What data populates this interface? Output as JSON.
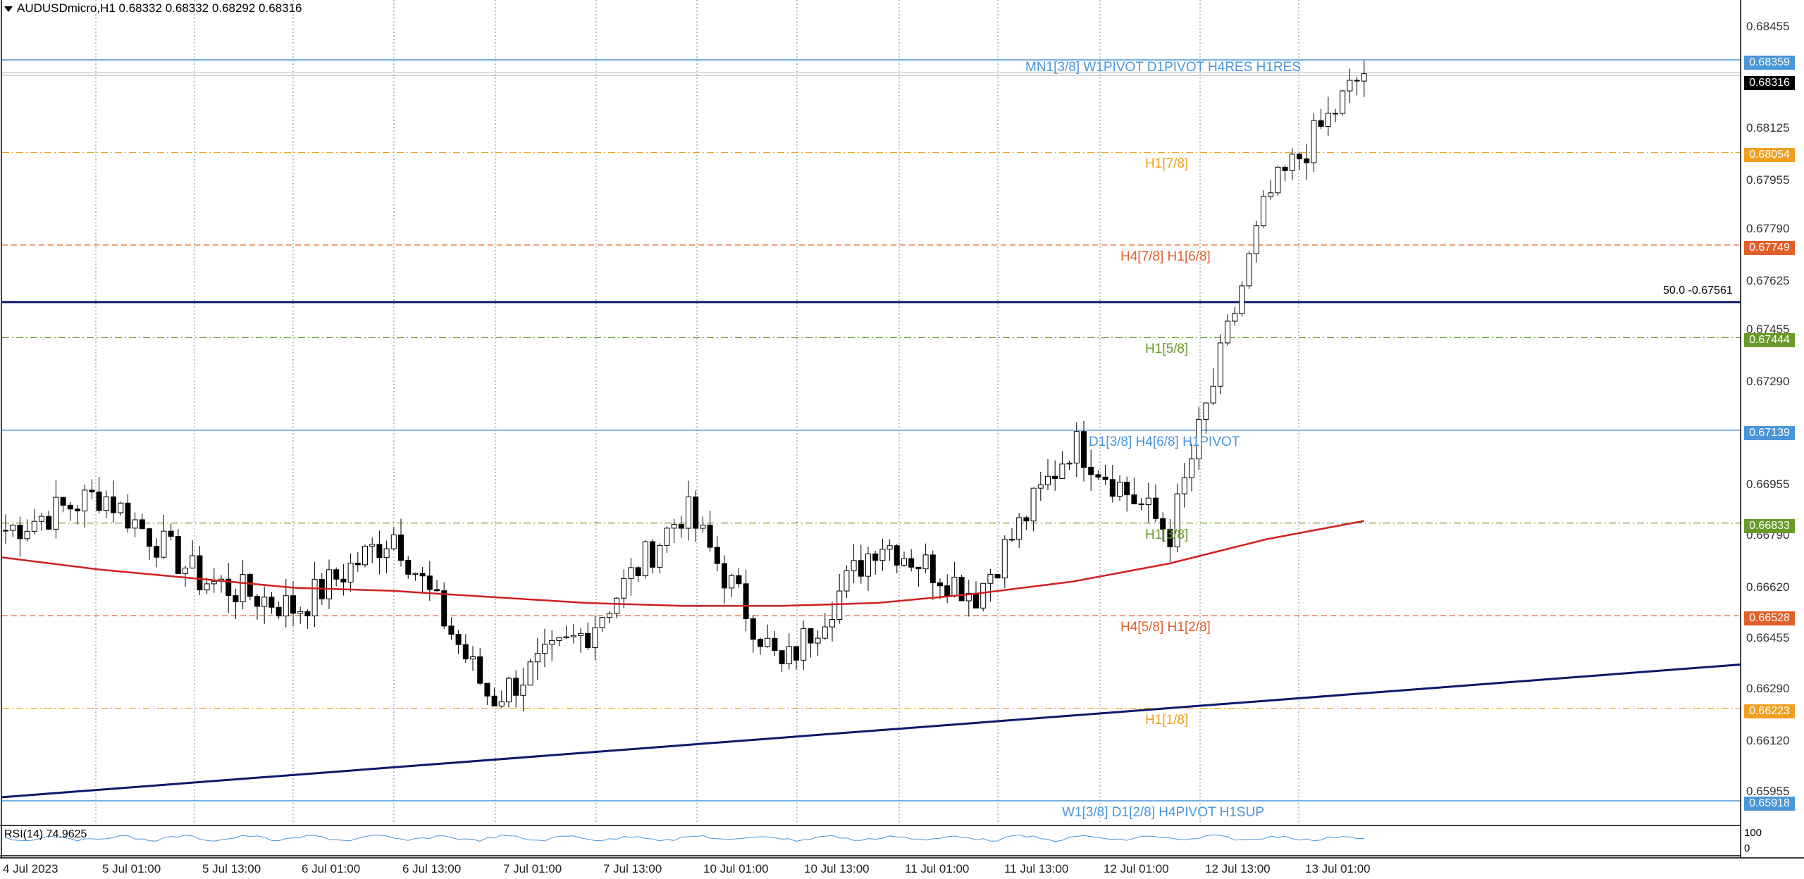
{
  "header": {
    "symbol_info": "AUDUSDmicro,H1  0.68332 0.68332 0.68292 0.68316"
  },
  "colors": {
    "blue": "#4a96d8",
    "orange": "#f0a020",
    "red_orange": "#e0602a",
    "green": "#6a9a2a",
    "navy": "#0a1a6a",
    "ma_red": "#d02020",
    "black": "#000000"
  },
  "price_axis": [
    "0.68455",
    "0.68125",
    "0.67955",
    "0.67790",
    "0.67625",
    "0.67455",
    "0.67290",
    "0.66955",
    "0.66790",
    "0.66620",
    "0.66455",
    "0.66290",
    "0.66120",
    "0.65955"
  ],
  "time_axis": [
    "4 Jul 2023",
    "5 Jul 01:00",
    "5 Jul 13:00",
    "6 Jul 01:00",
    "6 Jul 13:00",
    "7 Jul 01:00",
    "7 Jul 13:00",
    "10 Jul 01:00",
    "10 Jul 13:00",
    "11 Jul 01:00",
    "11 Jul 13:00",
    "12 Jul 01:00",
    "12 Jul 13:00",
    "13 Jul 01:00"
  ],
  "levels": [
    {
      "label": "MN1[3/8] W1PIVOT D1PIVOT H4RES H1RES",
      "price": 0.68359,
      "tag": "0.68359",
      "color": "#4a96d8",
      "style": "solid"
    },
    {
      "label": "H1[7/8]",
      "price": 0.68054,
      "tag": "0.68054",
      "color": "#f0a020",
      "style": "dashdot"
    },
    {
      "label": "H4[7/8] H1[6/8]",
      "price": 0.67749,
      "tag": "0.67749",
      "color": "#e0602a",
      "style": "dash"
    },
    {
      "label": "H1[5/8]",
      "price": 0.67444,
      "tag": "0.67444",
      "color": "#6a9a2a",
      "style": "dashdot"
    },
    {
      "label": "D1[3/8] H4[6/8] H1PIVOT",
      "price": 0.67139,
      "tag": "0.67139",
      "color": "#4a96d8",
      "style": "solid"
    },
    {
      "label": "H1[3/8]",
      "price": 0.66833,
      "tag": "0.66833",
      "color": "#6a9a2a",
      "style": "dashdot"
    },
    {
      "label": "H4[5/8] H1[2/8]",
      "price": 0.66528,
      "tag": "0.66528",
      "color": "#e0602a",
      "style": "dash"
    },
    {
      "label": "H1[1/8]",
      "price": 0.66223,
      "tag": "0.66223",
      "color": "#f0a020",
      "style": "dashdot"
    },
    {
      "label": "W1[3/8] D1[2/8] H4PIVOT H1SUP",
      "price": 0.65918,
      "tag": "0.65918",
      "color": "#4a96d8",
      "style": "solid"
    }
  ],
  "current_price": {
    "tag": "0.68316",
    "value": 0.68316
  },
  "fib_line": {
    "label": "50.0 -0.67561",
    "price": 0.67561
  },
  "rsi": {
    "label": "RSI(14) 74.9625",
    "scale_top": "100",
    "scale_bottom": "0",
    "value": 74.9625
  },
  "chart_data": {
    "type": "candlestick",
    "symbol": "AUDUSDmicro",
    "timeframe": "H1",
    "ylim": [
      0.6588,
      0.6853
    ],
    "x": [
      "4 Jul 2023",
      "5 Jul 01:00",
      "5 Jul 13:00",
      "6 Jul 01:00",
      "6 Jul 13:00",
      "7 Jul 01:00",
      "7 Jul 13:00",
      "10 Jul 01:00",
      "10 Jul 13:00",
      "11 Jul 01:00",
      "11 Jul 13:00",
      "12 Jul 01:00",
      "12 Jul 13:00",
      "13 Jul 01:00"
    ],
    "key_closes": [
      0.6681,
      0.6693,
      0.6665,
      0.6655,
      0.668,
      0.6625,
      0.6648,
      0.6688,
      0.6635,
      0.6678,
      0.666,
      0.671,
      0.668,
      0.679,
      0.6832
    ],
    "ma_closes": [
      0.6672,
      0.6668,
      0.6665,
      0.6662,
      0.6661,
      0.6659,
      0.6657,
      0.6656,
      0.6656,
      0.6657,
      0.666,
      0.6664,
      0.667,
      0.6678,
      0.6684
    ],
    "trendline": {
      "from": [
        "4 Jul 2023",
        0.6593
      ],
      "to": [
        "13 Jul 01:00",
        0.6636
      ]
    }
  }
}
